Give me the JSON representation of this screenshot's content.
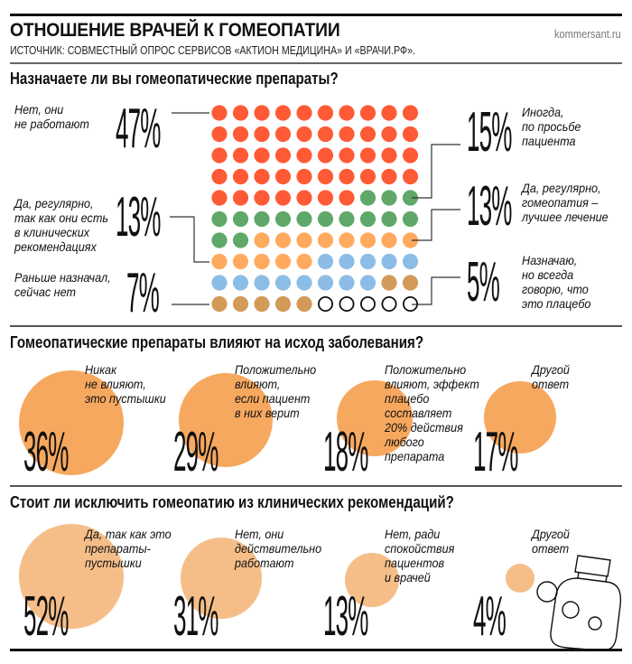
{
  "header": {
    "title": "ОТНОШЕНИЕ ВРАЧЕЙ К ГОМЕОПАТИИ",
    "brand": "kommersant.ru",
    "source": "ИСТОЧНИК: СОВМЕСТНЫЙ ОПРОС СЕРВИСОВ «АКТИОН МЕДИЦИНА» И «ВРАЧИ.РФ»."
  },
  "colors": {
    "red": "#FF5A36",
    "green": "#5FA86A",
    "orange": "#FFAA5E",
    "blue": "#8CBDE6",
    "brown": "#D39A5A",
    "section2_circle": "#F7A85F",
    "section3_circle": "#F5BE88"
  },
  "chart_data": [
    {
      "type": "waffle",
      "title": "Назначаете ли вы гомеопатические препараты?",
      "grid": "10x10",
      "series": [
        {
          "key": "no",
          "name": "Нет, они не работают",
          "value": 47,
          "label": "47%",
          "color": "red"
        },
        {
          "key": "sometimes",
          "name": "Иногда, по просьбе пациента",
          "value": 15,
          "label": "15%",
          "color": "green"
        },
        {
          "key": "best",
          "name": "Да, регулярно, гомеопатия – лучшее лечение",
          "value": 13,
          "label": "13%",
          "color": "orange"
        },
        {
          "key": "guidelines",
          "name": "Да, регулярно, так как они есть в клинических рекомендациях",
          "value": 13,
          "label": "13%",
          "color": "blue"
        },
        {
          "key": "former",
          "name": "Раньше назначал, сейчас нет",
          "value": 7,
          "label": "7%",
          "color": "brown"
        },
        {
          "key": "placebo",
          "name": "Назначаю, но всегда говорю, что это плацебо",
          "value": 5,
          "label": "5%",
          "color": "empty"
        }
      ]
    },
    {
      "type": "bubble",
      "title": "Гомеопатические препараты влияют на исход заболевания?",
      "series": [
        {
          "name": "Никак не влияют, это пустышки",
          "value": 36,
          "label": "36%"
        },
        {
          "name": "Положительно влияют, если пациент в них верит",
          "value": 29,
          "label": "29%"
        },
        {
          "name": "Положительно влияют, эффект плацебо составляет 20% действия любого препарата",
          "value": 18,
          "label": "18%"
        },
        {
          "name": "Другой ответ",
          "value": 17,
          "label": "17%"
        }
      ]
    },
    {
      "type": "bubble",
      "title": "Стоит ли исключить гомеопатию из клинических рекомендаций?",
      "series": [
        {
          "name": "Да, так как это препараты-пустышки",
          "value": 52,
          "label": "52%"
        },
        {
          "name": "Нет, они действительно работают",
          "value": 31,
          "label": "31%"
        },
        {
          "name": "Нет, ради спокойствия пациентов и врачей",
          "value": 13,
          "label": "13%"
        },
        {
          "name": "Другой ответ",
          "value": 4,
          "label": "4%"
        }
      ]
    }
  ],
  "labels": {
    "s1": {
      "no": "Нет, они\nне работают",
      "guidelines": "Да, регулярно,\nтак как они есть\nв клинических\nрекомендациях",
      "former": "Раньше назначал,\nсейчас нет",
      "sometimes": "Иногда,\nпо просьбе\nпациента",
      "best": "Да, регулярно,\nгомеопатия –\nлучшее лечение",
      "placebo": "Назначаю,\nно всегда\nговорю, что\nэто плацебо"
    },
    "s2": [
      "Никак\nне влияют,\nэто пустышки",
      "Положительно\nвлияют,\nесли пациент\nв них верит",
      "Положительно\nвлияют, эффект\nплацебо\nсоставляет\n20% действия\nлюбого\nпрепарата",
      "Другой\nответ"
    ],
    "s3": [
      "Да, так как это\nпрепараты-\nпустышки",
      "Нет, они\nдействительно\nработают",
      "Нет, ради\nспокойствия\nпациентов\nи врачей",
      "Другой\nответ"
    ]
  }
}
